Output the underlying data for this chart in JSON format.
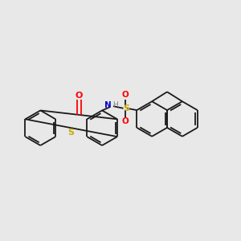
{
  "background_color": "#e8e8e8",
  "bond_color": "#1a1a1a",
  "atom_colors": {
    "O": "#ff0000",
    "S": "#ccaa00",
    "N": "#0000cd",
    "H": "#808080"
  },
  "figsize": [
    3.0,
    3.0
  ],
  "dpi": 100
}
